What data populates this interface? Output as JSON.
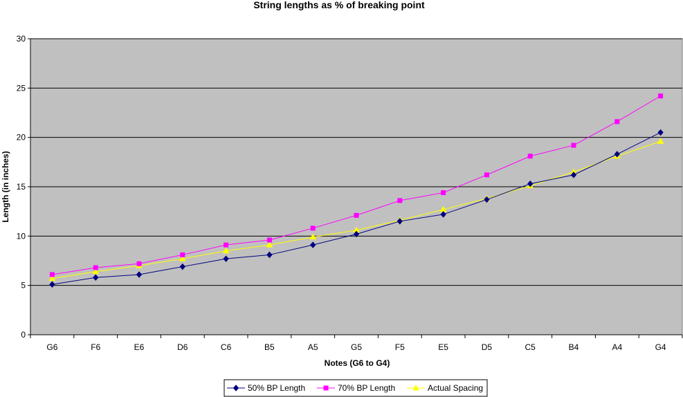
{
  "chart_data": {
    "type": "line",
    "title": "String lengths as % of breaking point",
    "xlabel": "Notes (G6 to G4)",
    "ylabel": "Length (in inches)",
    "ylim": [
      0,
      30
    ],
    "yticks": [
      0,
      5,
      10,
      15,
      20,
      25,
      30
    ],
    "grid": true,
    "legend_position": "bottom",
    "plot_background": "#c0c0c0",
    "categories": [
      "G6",
      "F6",
      "E6",
      "D6",
      "C6",
      "B5",
      "A5",
      "G5",
      "F5",
      "E5",
      "D5",
      "C5",
      "B4",
      "A4",
      "G4"
    ],
    "series": [
      {
        "name": "50% BP Length",
        "color": "#000080",
        "marker": "diamond",
        "values": [
          5.1,
          5.8,
          6.1,
          6.9,
          7.7,
          8.1,
          9.1,
          10.2,
          11.5,
          12.2,
          13.7,
          15.3,
          16.2,
          18.3,
          20.5
        ]
      },
      {
        "name": "70% BP Length",
        "color": "#ff00ff",
        "marker": "square",
        "values": [
          6.1,
          6.8,
          7.2,
          8.1,
          9.1,
          9.6,
          10.8,
          12.1,
          13.6,
          14.4,
          16.2,
          18.1,
          19.2,
          21.6,
          24.2
        ]
      },
      {
        "name": "Actual Spacing",
        "color": "#ffff00",
        "marker": "triangle",
        "values": [
          5.7,
          6.4,
          7.0,
          7.7,
          8.5,
          9.1,
          9.9,
          10.6,
          11.6,
          12.7,
          13.8,
          15.1,
          16.5,
          18.1,
          19.6
        ]
      }
    ]
  }
}
